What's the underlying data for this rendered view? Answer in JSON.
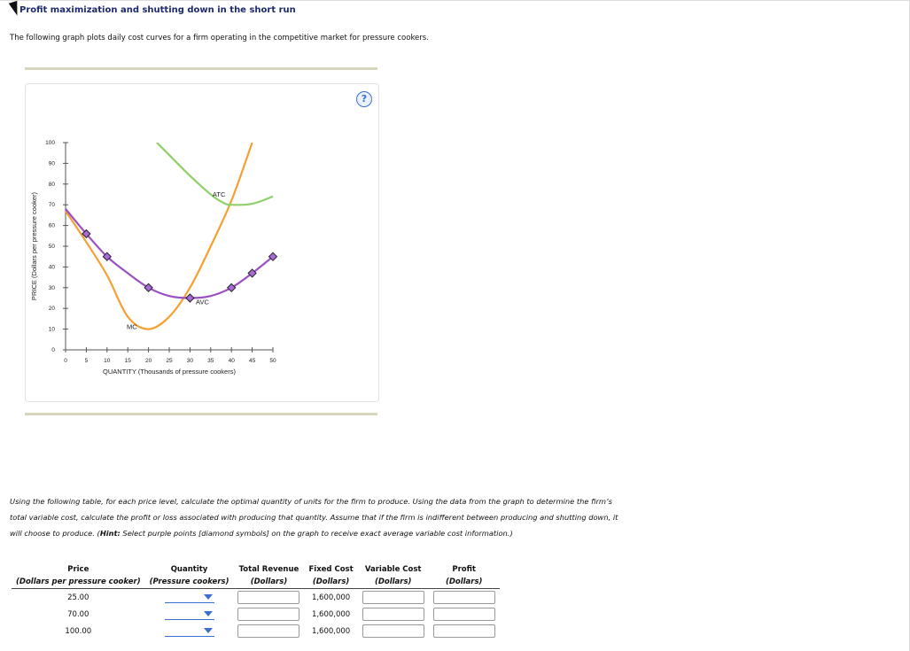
{
  "page": {
    "title": "Profit maximization and shutting down in the short run",
    "intro": "The following graph plots daily cost curves for a firm operating in the competitive market for pressure cookers.",
    "help_symbol": "?",
    "instructions": {
      "part1": "Using the following table, for each price level, calculate the optimal quantity of units for the firm to produce. Using the data from the graph to determine the firm’s total variable cost, calculate the profit or loss associated with producing that quantity. Assume that if the firm is indifferent between producing and shutting down, it will choose to produce. (",
      "hint_label": "Hint:",
      "part2": " Select purple points [diamond symbols] on the graph to receive exact average variable cost information.)"
    }
  },
  "colors": {
    "mc": "#f5a030",
    "atc": "#8fd06a",
    "avc": "#9b4fc4",
    "marker": "#a86ad8",
    "accent": "#3a6ed0"
  },
  "chart_data": {
    "type": "line",
    "xlabel": "QUANTITY (Thousands of pressure cookers)",
    "ylabel": "PRICE (Dollars per pressure cooker)",
    "xlim": [
      0,
      50
    ],
    "ylim": [
      0,
      100
    ],
    "x_ticks": [
      0,
      5,
      10,
      15,
      20,
      25,
      30,
      35,
      40,
      45,
      50
    ],
    "y_ticks": [
      0,
      10,
      20,
      30,
      40,
      50,
      60,
      70,
      80,
      90,
      100
    ],
    "grid": false,
    "series": [
      {
        "name": "MC",
        "label_at": [
          16,
          10
        ],
        "color_key": "mc",
        "points": [
          [
            0,
            67
          ],
          [
            5,
            52
          ],
          [
            10,
            36
          ],
          [
            15,
            16
          ],
          [
            20,
            10
          ],
          [
            25,
            16
          ],
          [
            30,
            30
          ],
          [
            35,
            50
          ],
          [
            40,
            72
          ],
          [
            45,
            100
          ]
        ]
      },
      {
        "name": "ATC",
        "label_at": [
          37,
          74
        ],
        "color_key": "atc",
        "points": [
          [
            22,
            100
          ],
          [
            25,
            94
          ],
          [
            30,
            84
          ],
          [
            35,
            75
          ],
          [
            38,
            71
          ],
          [
            40,
            70
          ],
          [
            45,
            70.5
          ],
          [
            50,
            74
          ]
        ]
      },
      {
        "name": "AVC",
        "label_at": [
          33,
          22
        ],
        "color_key": "avc",
        "points": [
          [
            0,
            68
          ],
          [
            5,
            56
          ],
          [
            10,
            45
          ],
          [
            15,
            37
          ],
          [
            20,
            30
          ],
          [
            25,
            26
          ],
          [
            30,
            25
          ],
          [
            35,
            26
          ],
          [
            40,
            30
          ],
          [
            45,
            37
          ],
          [
            50,
            45
          ]
        ]
      }
    ],
    "markers": [
      [
        5,
        56
      ],
      [
        10,
        45
      ],
      [
        20,
        30
      ],
      [
        30,
        25
      ],
      [
        40,
        30
      ],
      [
        45,
        37
      ],
      [
        50,
        45
      ]
    ]
  },
  "table": {
    "headers": [
      {
        "main": "Price",
        "sub": "(Dollars per pressure cooker)"
      },
      {
        "main": "Quantity",
        "sub": "(Pressure cookers)"
      },
      {
        "main": "Total Revenue",
        "sub": "(Dollars)"
      },
      {
        "main": "Fixed Cost",
        "sub": "(Dollars)"
      },
      {
        "main": "Variable Cost",
        "sub": "(Dollars)"
      },
      {
        "main": "Profit",
        "sub": "(Dollars)"
      }
    ],
    "rows": [
      {
        "price": "25.00",
        "fixed_cost": "1,600,000"
      },
      {
        "price": "70.00",
        "fixed_cost": "1,600,000"
      },
      {
        "price": "100.00",
        "fixed_cost": "1,600,000"
      }
    ]
  }
}
